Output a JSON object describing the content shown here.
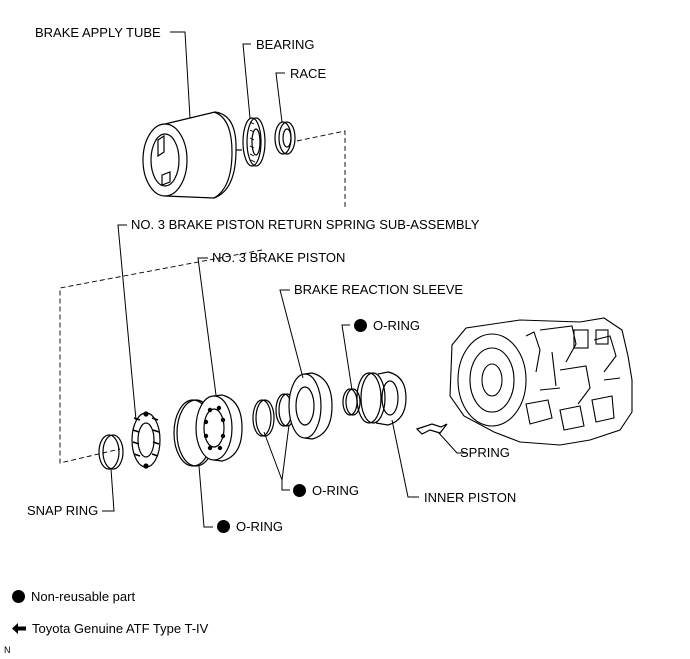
{
  "labels": {
    "brake_apply_tube": "BRAKE APPLY TUBE",
    "bearing": "BEARING",
    "race": "RACE",
    "return_spring": "NO. 3 BRAKE PISTON RETURN SPRING SUB-ASSEMBLY",
    "brake_piston": "NO. 3 BRAKE PISTON",
    "reaction_sleeve": "BRAKE REACTION SLEEVE",
    "oring_top": "O-RING",
    "spring": "SPRING",
    "oring_mid": "O-RING",
    "inner_piston": "INNER PISTON",
    "snap_ring": "SNAP RING",
    "oring_bottom": "O-RING"
  },
  "legend": {
    "non_reusable": "Non-reusable part",
    "atf": "Toyota Genuine ATF Type T-IV"
  },
  "corner_mark": "N",
  "colors": {
    "ink": "#000000",
    "background": "#ffffff"
  }
}
